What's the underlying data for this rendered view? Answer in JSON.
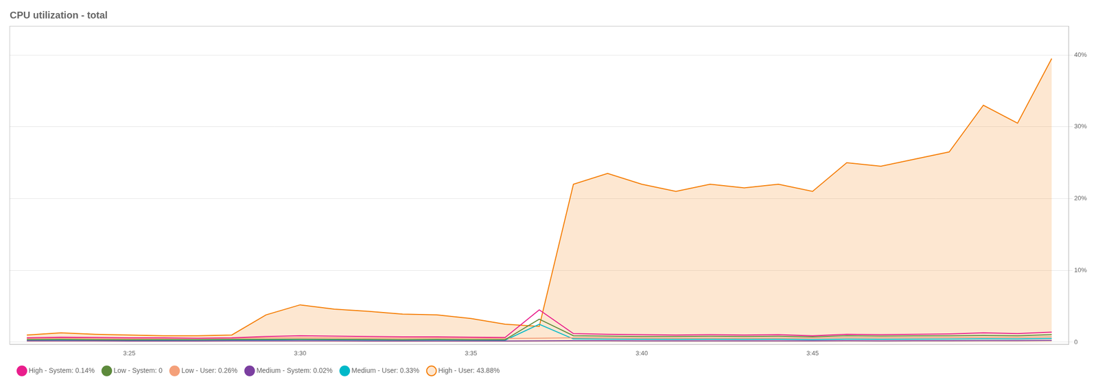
{
  "chart_data": {
    "type": "line",
    "title": "CPU utilization - total",
    "categories": [
      null,
      null,
      null,
      "3:25",
      null,
      null,
      null,
      null,
      "3:30",
      null,
      null,
      null,
      null,
      "3:35",
      null,
      null,
      null,
      null,
      "3:40",
      null,
      null,
      null,
      null,
      "3:45",
      null,
      null,
      null,
      null,
      null,
      null,
      null
    ],
    "ylim": [
      -0.3,
      44
    ],
    "yticks": [
      0,
      {
        "value": 10,
        "label": "10%"
      },
      {
        "value": 20,
        "label": "20%"
      },
      {
        "value": 30,
        "label": "30%"
      },
      {
        "value": 40,
        "label": "40%"
      }
    ],
    "grid": true,
    "legend": "bottom",
    "series": [
      {
        "name": "High - System: 0.14%",
        "color": "#e91e8c",
        "values": [
          0.6,
          0.7,
          0.65,
          0.6,
          0.6,
          0.55,
          0.6,
          0.8,
          0.9,
          0.85,
          0.8,
          0.75,
          0.75,
          0.7,
          0.65,
          4.5,
          1.2,
          1.1,
          1.05,
          1.0,
          1.05,
          1.0,
          1.05,
          0.9,
          1.1,
          1.05,
          1.1,
          1.15,
          1.3,
          1.2,
          1.4
        ]
      },
      {
        "name": "High - User: 43.88%",
        "color": "#f57c00",
        "type": "area",
        "values": [
          1.0,
          1.3,
          1.1,
          1.0,
          0.9,
          0.9,
          1.0,
          3.8,
          5.2,
          4.6,
          4.3,
          3.9,
          3.8,
          3.3,
          2.5,
          2.2,
          22.0,
          23.5,
          22.0,
          21.0,
          22.0,
          21.5,
          22.0,
          21.0,
          25.0,
          24.5,
          25.5,
          26.5,
          33.0,
          30.5,
          39.5
        ]
      },
      {
        "name": "Low - System: 0",
        "color": "#5d8a3c",
        "values": [
          0.35,
          0.38,
          0.36,
          0.34,
          0.35,
          0.36,
          0.38,
          0.4,
          0.42,
          0.4,
          0.38,
          0.36,
          0.38,
          0.36,
          0.35,
          3.2,
          0.9,
          0.85,
          0.8,
          0.8,
          0.82,
          0.8,
          0.82,
          0.75,
          0.9,
          0.85,
          0.88,
          0.9,
          0.95,
          0.9,
          1.05
        ]
      },
      {
        "name": "Low - User: 0.26%",
        "color": "#f4a07a",
        "values": [
          0.5,
          0.55,
          0.52,
          0.5,
          0.52,
          0.54,
          0.56,
          0.6,
          0.62,
          0.6,
          0.58,
          0.55,
          0.58,
          0.55,
          0.52,
          0.55,
          0.6,
          0.6,
          0.58,
          0.55,
          0.58,
          0.56,
          0.58,
          0.55,
          0.62,
          0.6,
          0.62,
          0.65,
          0.7,
          0.68,
          0.75
        ]
      },
      {
        "name": "Medium - System: 0.02%",
        "color": "#7b3fa0",
        "values": [
          0.18,
          0.18,
          0.18,
          0.17,
          0.17,
          0.17,
          0.18,
          0.18,
          0.19,
          0.18,
          0.17,
          0.17,
          0.17,
          0.17,
          0.17,
          0.18,
          0.2,
          0.2,
          0.19,
          0.19,
          0.19,
          0.19,
          0.19,
          0.18,
          0.2,
          0.19,
          0.2,
          0.2,
          0.22,
          0.21,
          0.25
        ]
      },
      {
        "name": "Medium - User: 0.33%",
        "color": "#00b8c8",
        "values": [
          0.28,
          0.3,
          0.28,
          0.27,
          0.27,
          0.28,
          0.3,
          0.32,
          0.35,
          0.33,
          0.3,
          0.28,
          0.3,
          0.28,
          0.27,
          2.5,
          0.45,
          0.42,
          0.4,
          0.38,
          0.4,
          0.38,
          0.4,
          0.36,
          0.42,
          0.4,
          0.42,
          0.44,
          0.48,
          0.46,
          0.52
        ]
      }
    ]
  }
}
